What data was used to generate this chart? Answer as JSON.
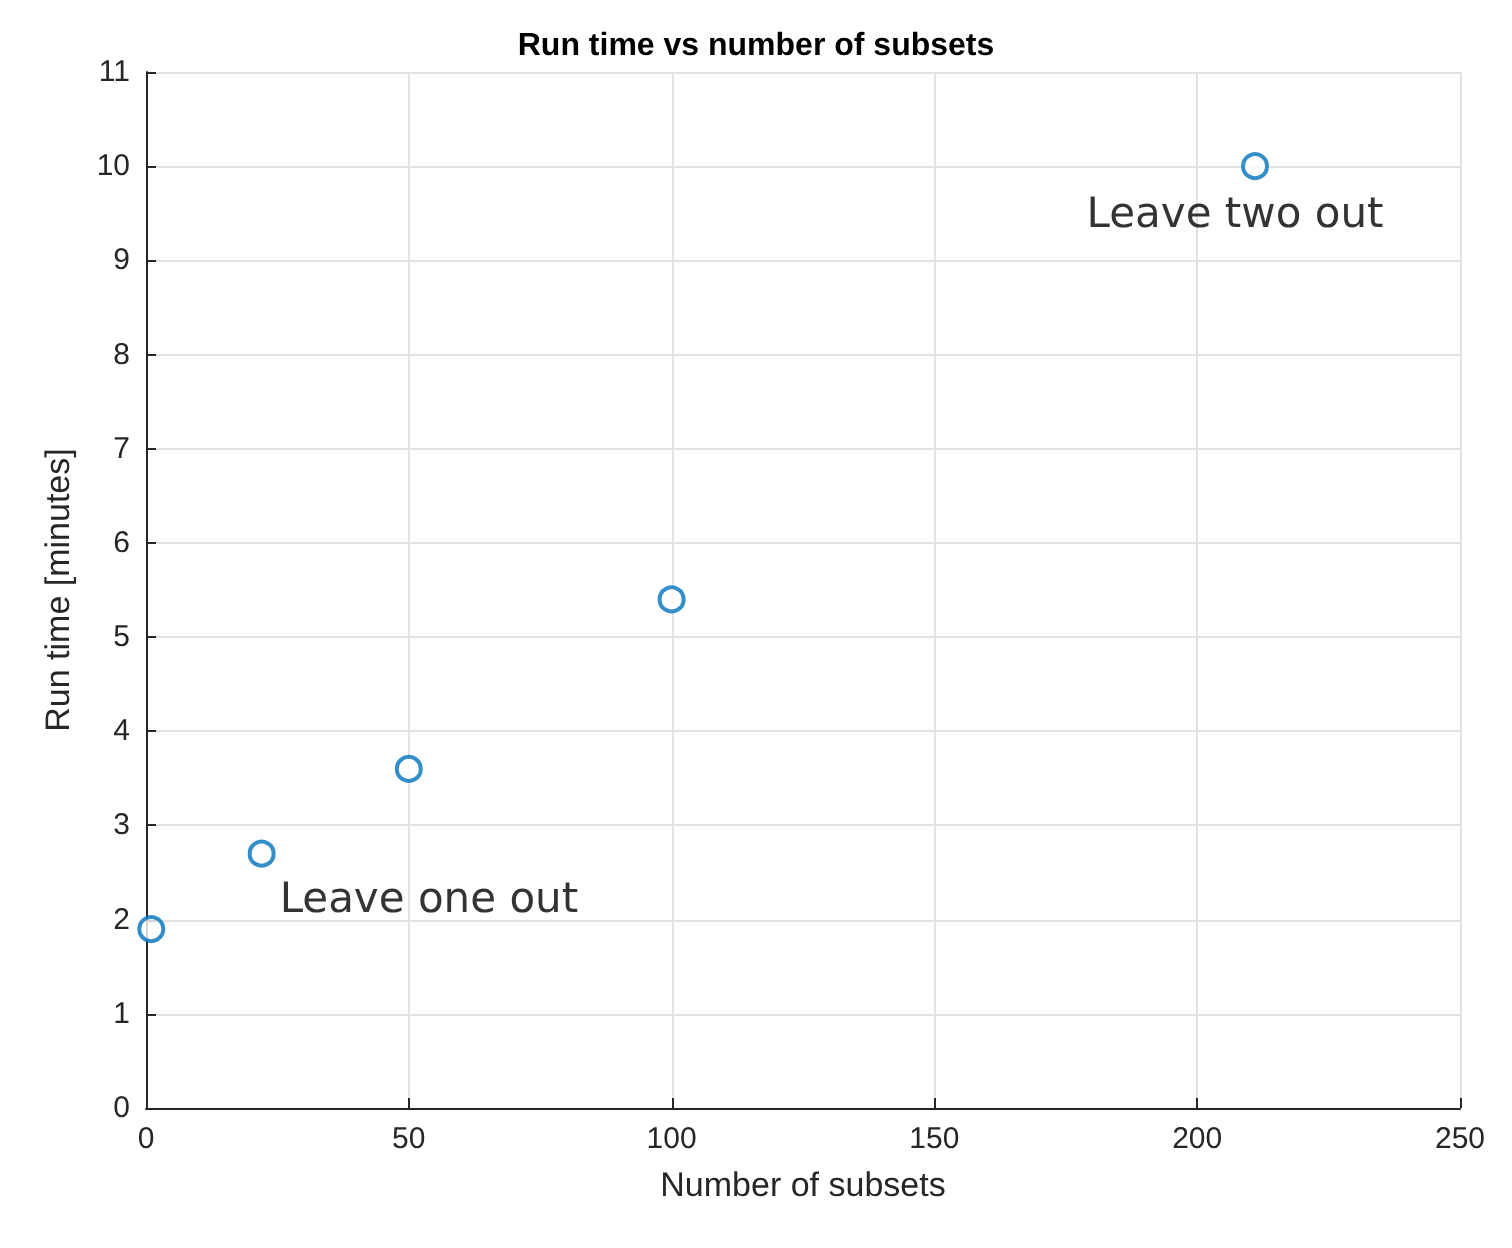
{
  "chart_data": {
    "type": "scatter",
    "title": "Run time vs number of subsets",
    "xlabel": "Number of subsets",
    "ylabel": "Run time [minutes]",
    "x": [
      1,
      22,
      50,
      100,
      211
    ],
    "series": [
      {
        "color": "#0072bd",
        "values": [
          1.9,
          2.7,
          3.6,
          5.4,
          10
        ]
      }
    ],
    "xlim": [
      0,
      250
    ],
    "xticks": [
      0,
      50,
      100,
      150,
      200,
      250
    ],
    "ylim": [
      0,
      11
    ],
    "yticks": [
      0,
      1,
      2,
      3,
      4,
      5,
      6,
      7,
      8,
      9,
      10,
      11
    ],
    "grid": true,
    "marker": "circle",
    "annotations": [
      {
        "text": "Leave one out",
        "x": 22,
        "y": 2.7
      },
      {
        "text": "Leave two out",
        "x": 211,
        "y": 10
      }
    ]
  }
}
